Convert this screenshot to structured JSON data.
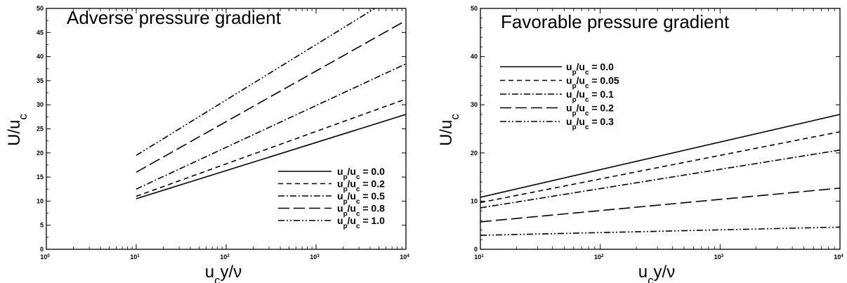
{
  "chart_data": [
    {
      "type": "line",
      "title": "Adverse pressure gradient",
      "xlabel": "u_c y/ν",
      "ylabel": "U/u_c",
      "xscale": "log",
      "xlim": [
        1,
        10000
      ],
      "ylim": [
        0,
        50
      ],
      "x_ticks": [
        1,
        10,
        100,
        1000,
        10000
      ],
      "y_ticks": [
        0,
        5,
        10,
        15,
        20,
        25,
        30,
        35,
        40,
        45,
        50
      ],
      "legend_position": "lower-right",
      "series": [
        {
          "name": "u_p/u_c = 0.0",
          "dash": "solid",
          "x": [
            10,
            10000
          ],
          "y": [
            10.5,
            28.0
          ]
        },
        {
          "name": "u_p/u_c = 0.2",
          "dash": "short-dash",
          "x": [
            10,
            10000
          ],
          "y": [
            11.0,
            31.2
          ]
        },
        {
          "name": "u_p/u_c = 0.5",
          "dash": "dash-dot",
          "x": [
            10,
            10000
          ],
          "y": [
            12.5,
            38.5
          ]
        },
        {
          "name": "u_p/u_c = 0.8",
          "dash": "long-dash",
          "x": [
            10,
            10000
          ],
          "y": [
            16.0,
            47.5
          ]
        },
        {
          "name": "u_p/u_c = 1.0",
          "dash": "dash-dot-dot",
          "x": [
            10,
            4500
          ],
          "y": [
            19.5,
            50.0
          ]
        }
      ]
    },
    {
      "type": "line",
      "title": "Favorable pressure gradient",
      "xlabel": "u_c y/ν",
      "ylabel": "U/u_c",
      "xscale": "log",
      "xlim": [
        10,
        10000
      ],
      "ylim": [
        0,
        50
      ],
      "x_ticks": [
        10,
        100,
        1000,
        10000
      ],
      "y_ticks": [
        0,
        10,
        20,
        30,
        40,
        50
      ],
      "legend_position": "upper-left",
      "series": [
        {
          "name": "u_p/u_c = 0.0",
          "dash": "solid",
          "x": [
            10,
            10000
          ],
          "y": [
            10.8,
            28.0
          ]
        },
        {
          "name": "u_p/u_c = 0.05",
          "dash": "short-dash",
          "x": [
            10,
            10000
          ],
          "y": [
            9.7,
            24.4
          ]
        },
        {
          "name": "u_p/u_c = 0.1",
          "dash": "dash-dot",
          "x": [
            10,
            10000
          ],
          "y": [
            8.6,
            20.6
          ]
        },
        {
          "name": "u_p/u_c = 0.2",
          "dash": "long-dash",
          "x": [
            10,
            10000
          ],
          "y": [
            5.7,
            12.7
          ]
        },
        {
          "name": "u_p/u_c = 0.3",
          "dash": "dash-dot-dot",
          "x": [
            10,
            10000
          ],
          "y": [
            2.9,
            4.6
          ]
        }
      ]
    }
  ]
}
